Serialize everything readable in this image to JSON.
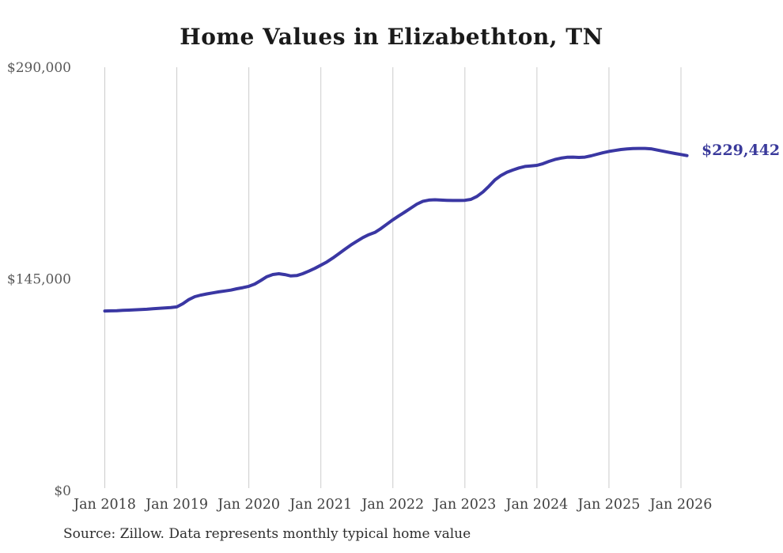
{
  "page": {
    "background_color": "#ffffff"
  },
  "chart_data": {
    "type": "line",
    "title": "Home Values in Elizabethton, TN",
    "source_note": "Source: Zillow. Data represents monthly typical home value",
    "series_name": "Monthly typical home value",
    "x_start": "Jan 2018",
    "x_end": "Feb 2026",
    "x_tick_labels": [
      "Jan 2018",
      "Jan 2019",
      "Jan 2020",
      "Jan 2021",
      "Jan 2022",
      "Jan 2023",
      "Jan 2024",
      "Jan 2025",
      "Jan 2026"
    ],
    "y_ticks": [
      {
        "label": "$290,000",
        "value": 290000
      },
      {
        "label": "$145,000",
        "value": 145000
      },
      {
        "label": "$0",
        "value": 0
      }
    ],
    "ylim": [
      0,
      290000
    ],
    "grid": "vertical-only",
    "legend": "none",
    "end_label": "$229,442",
    "latest_value": 229442,
    "values": [
      123000,
      123100,
      123200,
      123400,
      123600,
      123800,
      124000,
      124200,
      124500,
      124800,
      125100,
      125400,
      125800,
      128000,
      130800,
      132800,
      133900,
      134700,
      135400,
      136100,
      136700,
      137300,
      138200,
      139000,
      139900,
      141500,
      143900,
      146500,
      148000,
      148500,
      147900,
      147000,
      147300,
      148600,
      150300,
      152200,
      154400,
      156600,
      159300,
      162300,
      165300,
      168200,
      170800,
      173300,
      175300,
      176800,
      179500,
      182500,
      185500,
      188200,
      190800,
      193500,
      196200,
      198200,
      199000,
      199200,
      199000,
      198800,
      198700,
      198700,
      198800,
      199500,
      201500,
      204500,
      208500,
      212800,
      215800,
      218000,
      219600,
      221000,
      222000,
      222400,
      222800,
      223900,
      225500,
      226800,
      227700,
      228300,
      228400,
      228200,
      228400,
      229300,
      230400,
      231400,
      232300,
      233000,
      233600,
      234000,
      234300,
      234400,
      234400,
      234100,
      233300,
      232500,
      231700,
      230900,
      230200,
      229442
    ],
    "colors": {
      "line": "#3a37a3",
      "grid": "#cccccc",
      "title": "#1a1a1a",
      "y_tick": "#595959",
      "x_tick": "#404040",
      "end_label": "#3a3a9b",
      "source": "#2e2e2e"
    }
  }
}
